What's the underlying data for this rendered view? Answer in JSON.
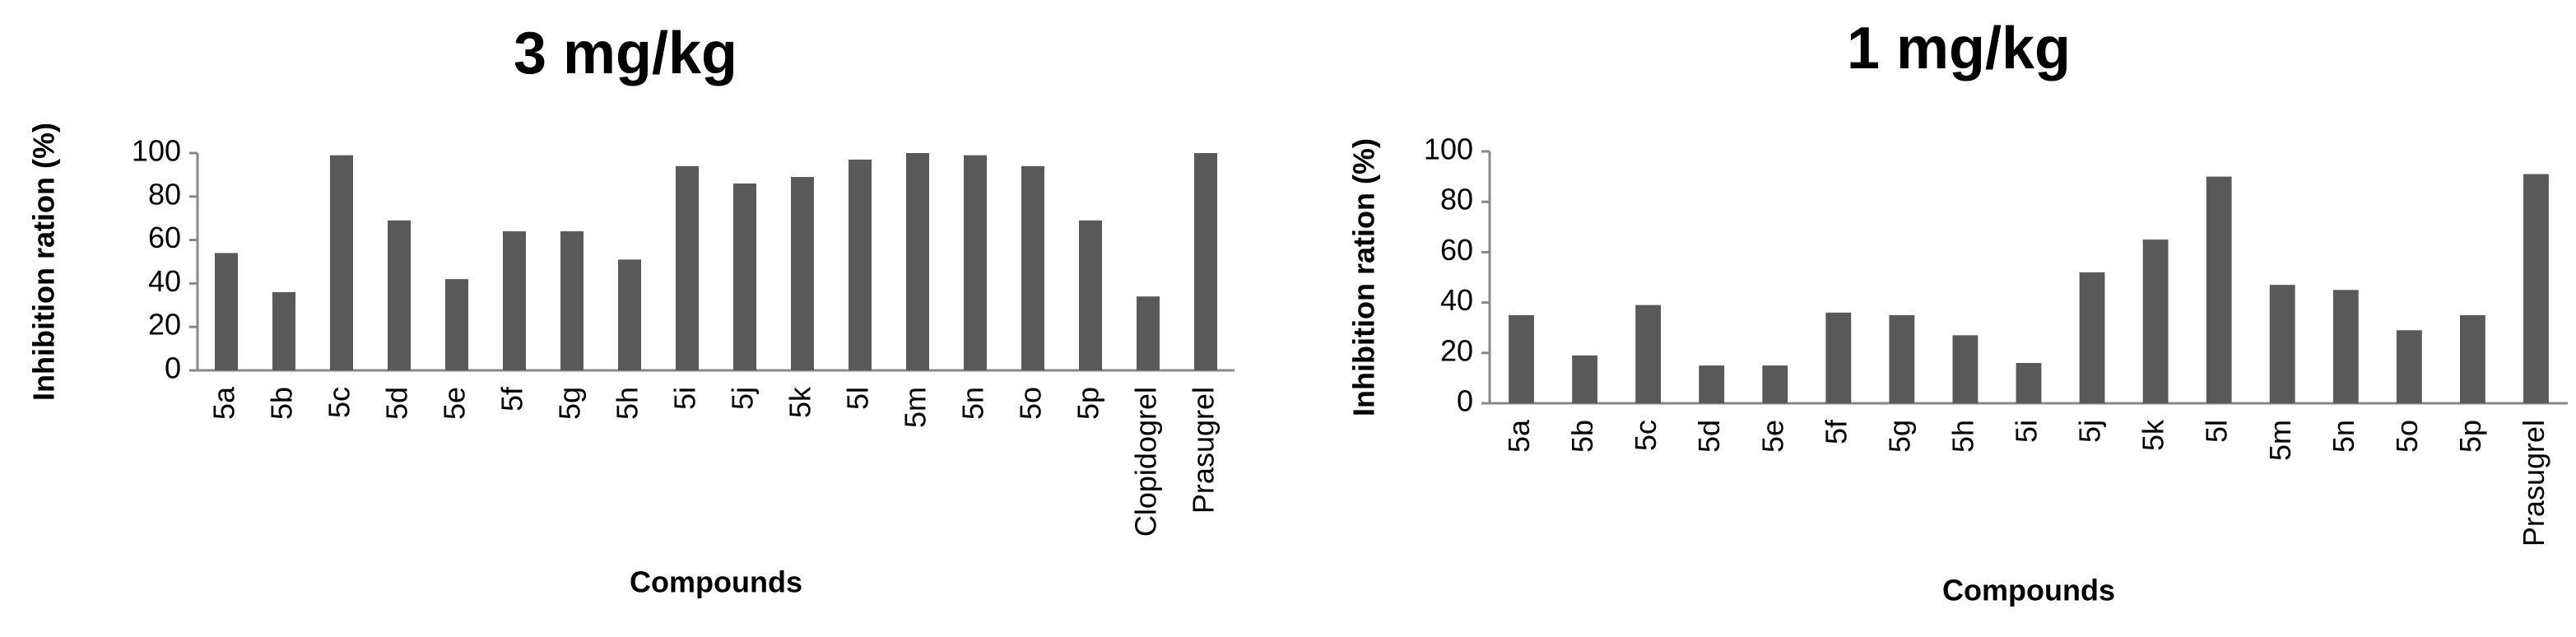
{
  "chart_data": [
    {
      "type": "bar",
      "title": "3 mg/kg",
      "y_label": "Inhibition  ration (%)",
      "x_label": "Compounds",
      "categories": [
        "5a",
        "5b",
        "5c",
        "5d",
        "5e",
        "5f",
        "5g",
        "5h",
        "5i",
        "5j",
        "5k",
        "5l",
        "5m",
        "5n",
        "5o",
        "5p",
        "Clopidogrel",
        "Prasugrel"
      ],
      "values": [
        54,
        36,
        99,
        69,
        42,
        64,
        64,
        51,
        94,
        86,
        89,
        97,
        100,
        99,
        94,
        69,
        34,
        100
      ],
      "color": "#595959",
      "ylim": [
        0,
        100
      ],
      "yticks": [
        0,
        20,
        40,
        60,
        80,
        100
      ],
      "grid": false
    },
    {
      "type": "bar",
      "title": "1 mg/kg",
      "y_label": "Inhibition  ration (%)",
      "x_label": "Compounds",
      "categories": [
        "5a",
        "5b",
        "5c",
        "5d",
        "5e",
        "5f",
        "5g",
        "5h",
        "5i",
        "5j",
        "5k",
        "5l",
        "5m",
        "5n",
        "5o",
        "5p",
        "Prasugrel"
      ],
      "values": [
        35,
        19,
        39,
        15,
        15,
        36,
        35,
        27,
        16,
        52,
        65,
        90,
        47,
        45,
        29,
        35,
        91
      ],
      "color": "#595959",
      "ylim": [
        0,
        100
      ],
      "yticks": [
        0,
        20,
        40,
        60,
        80,
        100
      ],
      "grid": false
    }
  ]
}
